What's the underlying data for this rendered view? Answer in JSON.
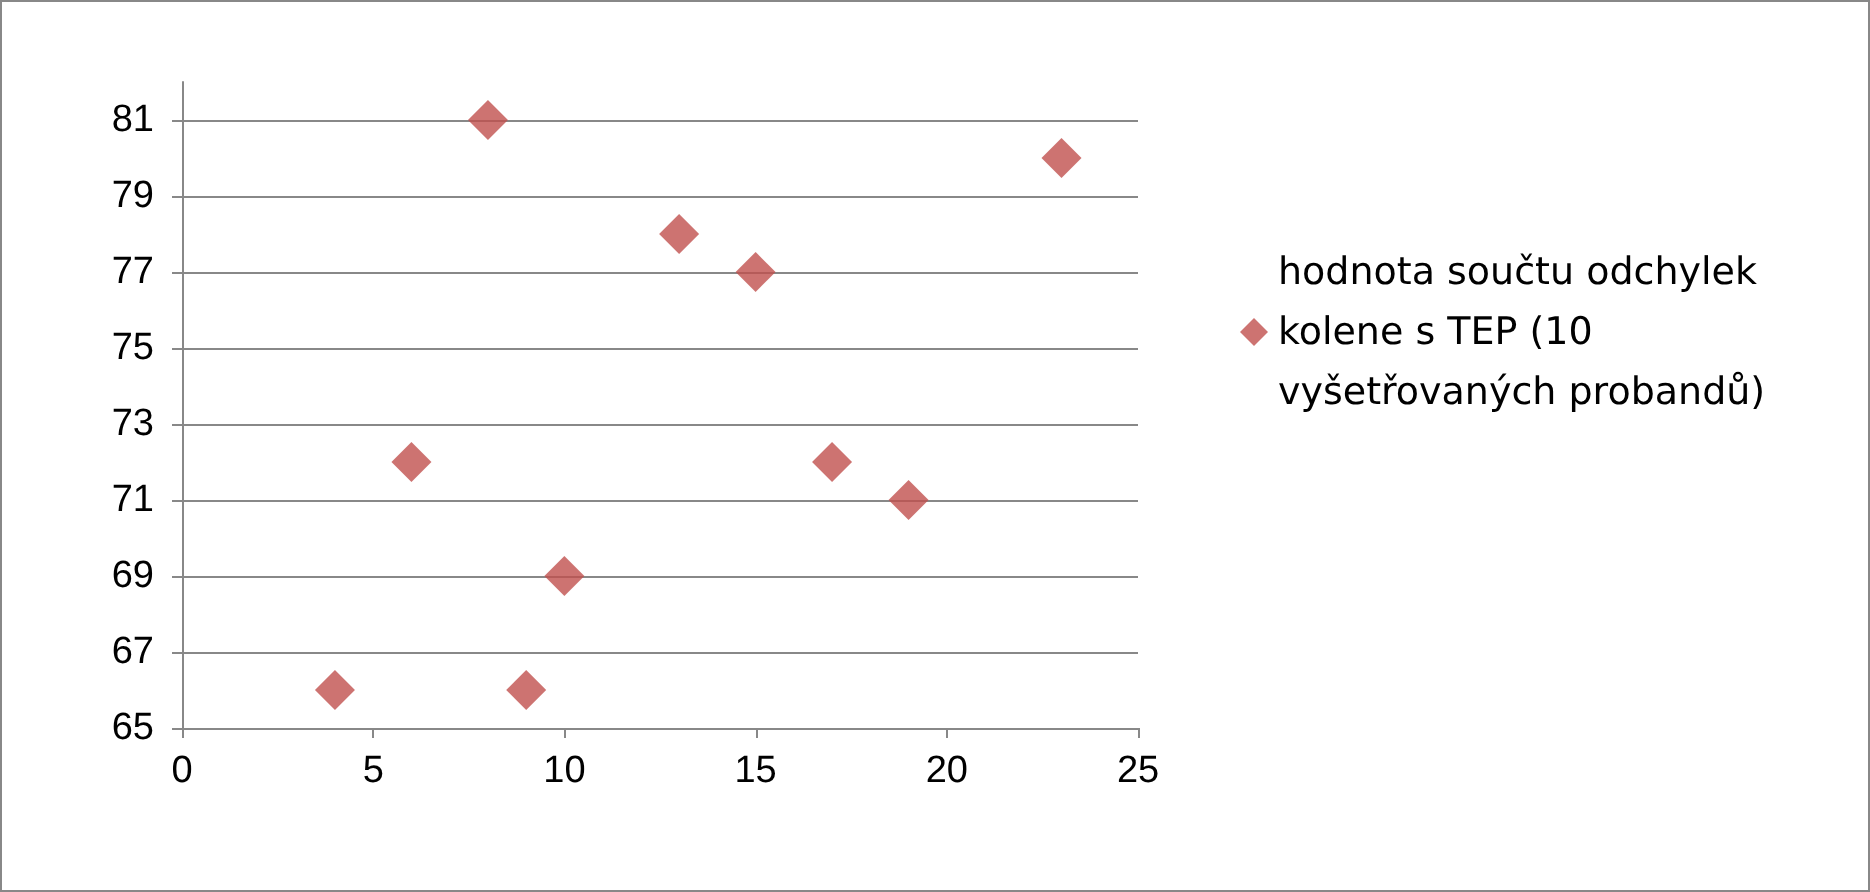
{
  "chart_data": {
    "type": "scatter",
    "x": [
      4,
      6,
      8,
      9,
      10,
      13,
      15,
      17,
      19,
      23
    ],
    "series": [
      {
        "name": "hodnota součtu odchylek kolene s TEP (10 vyšetřovaných probandů)",
        "color": "#c0504d",
        "values": [
          66,
          72,
          81,
          66,
          69,
          78,
          77,
          72,
          71,
          80
        ]
      }
    ],
    "xlim": [
      0,
      25
    ],
    "xticks": [
      0,
      5,
      10,
      15,
      20,
      25
    ],
    "ylim": [
      65,
      82
    ],
    "yticks": [
      65,
      67,
      69,
      71,
      73,
      75,
      77,
      79,
      81
    ],
    "grid": "y",
    "marker": "diamond",
    "legend": "right"
  }
}
